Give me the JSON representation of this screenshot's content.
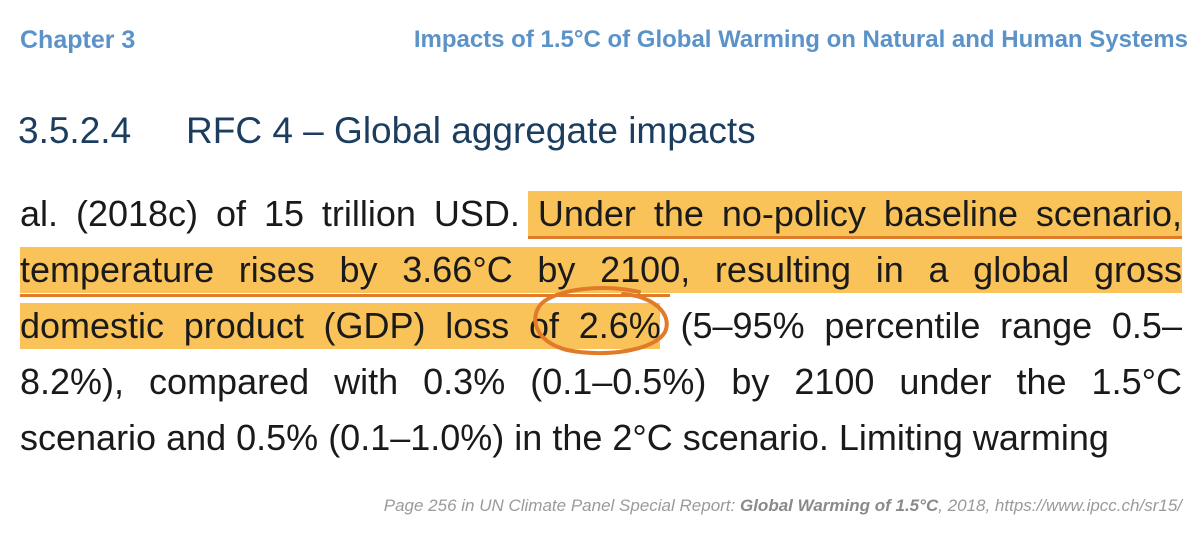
{
  "header": {
    "chapter": "Chapter 3",
    "running_title": "Impacts of 1.5°C of Global Warming on Natural and Human Systems"
  },
  "section": {
    "number": "3.5.2.4",
    "title": "RFC 4 – Global aggregate impacts"
  },
  "excerpt": {
    "line1_plain": "al. (2018c) of 15 trillion USD.",
    "line1_highlight": "Under the no-policy baseline scenario,",
    "line2_highlight": "temperature rises by 3.66°C by 2100, resulting in a global gross",
    "line3_highlight_pre": "domestic product (GDP) loss of",
    "line3_circled": "2.6%",
    "line3_plain": "(5–95% percentile range 0.5–",
    "line4": "8.2%), compared with 0.3% (0.1–0.5%) by 2100 under the 1.5°C",
    "line5": "scenario and 0.5% (0.1–1.0%) in the 2°C scenario. Limiting warming"
  },
  "caption": {
    "prefix": "Page 256 in UN Climate Panel Special Report: ",
    "report_title": "Global Warming of 1.5°C",
    "suffix": ", 2018, https://www.ipcc.ch/sr15/"
  },
  "colors": {
    "accent_blue": "#5b93c9",
    "heading_navy": "#1b3d5f",
    "highlight": "#f9c35a",
    "circle": "#e07b2a"
  }
}
